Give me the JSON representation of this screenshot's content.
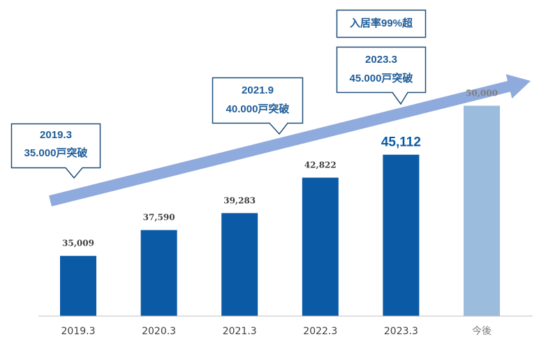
{
  "chart_data": {
    "type": "bar",
    "categories": [
      "2019.3",
      "2020.3",
      "2021.3",
      "2022.3",
      "2023.3",
      "今後"
    ],
    "values": [
      35009,
      37590,
      39283,
      42822,
      45112,
      50000
    ],
    "value_labels": [
      "35,009",
      "37,590",
      "39,283",
      "42,822",
      "45,112",
      "50,000"
    ],
    "highlighted_value_index": 4,
    "future_index": 5,
    "ylim": [
      29000,
      51500
    ],
    "grid": false,
    "legend": "none",
    "title": "",
    "xlabel": "",
    "ylabel": ""
  },
  "colors": {
    "bar": "#0a5aa6",
    "bar_future": "#9bbcdc",
    "arrow": "#8faadc",
    "callout_text": "#1f5c99",
    "callout_border": "#1f4e79",
    "axis_label": "#404040",
    "value_label": "#404040",
    "value_label_future": "#7f7f7f"
  },
  "callouts": [
    {
      "line1": "2019.3",
      "line2": "35.000戸突破"
    },
    {
      "line1": "2021.9",
      "line2": "40.000戸突破"
    },
    {
      "line1": "2023.3",
      "line2": "45.000戸突破"
    }
  ],
  "occupancy_note": "入居率99%超"
}
